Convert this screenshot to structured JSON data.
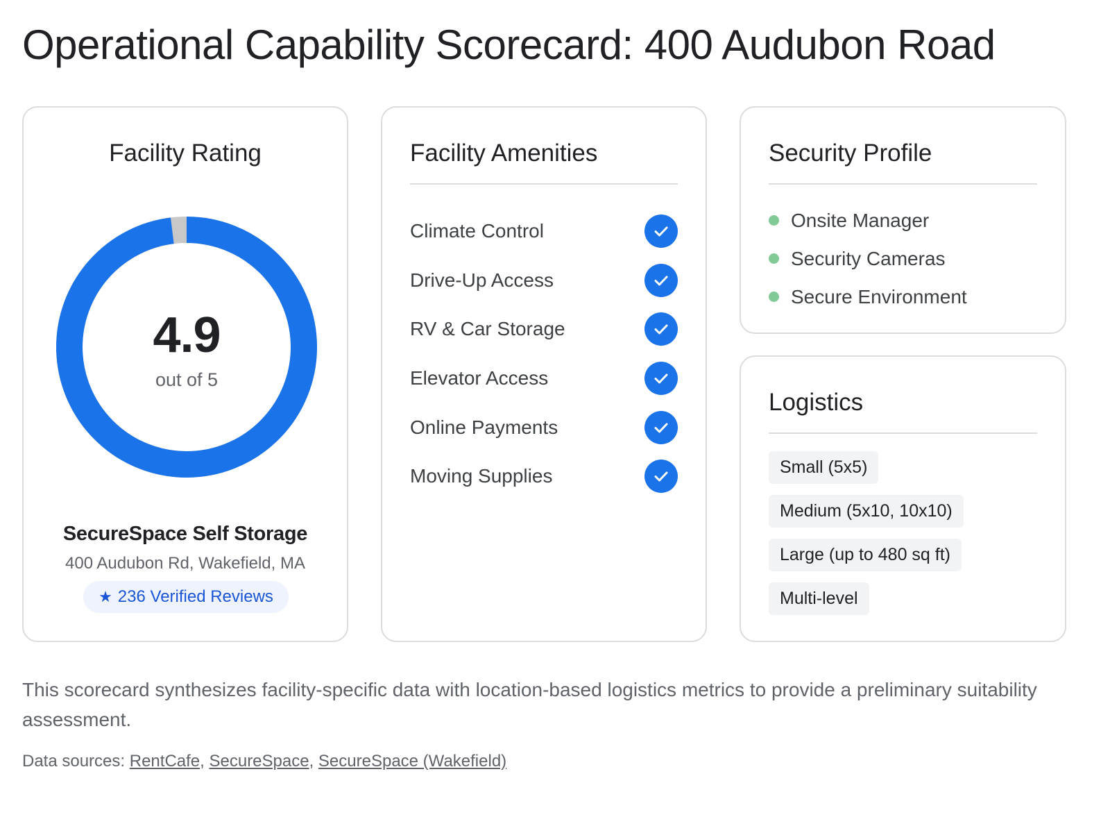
{
  "page": {
    "title": "Operational Capability Scorecard: 400 Audubon Road"
  },
  "rating_card": {
    "title": "Facility Rating",
    "score": "4.9",
    "score_caption": "out of 5",
    "score_fraction": 0.98,
    "facility_name": "SecureSpace Self Storage",
    "address": "400 Audubon Rd, Wakefield, MA",
    "reviews_label": "236 Verified Reviews",
    "star_icon": "star-icon",
    "colors": {
      "ring_fill": "#1a73e8",
      "ring_remainder": "#c8c8c8"
    }
  },
  "amenities_card": {
    "title": "Facility Amenities",
    "check_icon": "check-circle-icon",
    "check_color": "#1a73e8",
    "items": [
      {
        "label": "Climate Control"
      },
      {
        "label": "Drive-Up Access"
      },
      {
        "label": "RV & Car Storage"
      },
      {
        "label": "Elevator Access"
      },
      {
        "label": "Online Payments"
      },
      {
        "label": "Moving Supplies"
      }
    ]
  },
  "security_card": {
    "title": "Security Profile",
    "dot_color": "#81c995",
    "items": [
      {
        "label": "Onsite Manager"
      },
      {
        "label": "Security Cameras"
      },
      {
        "label": "Secure Environment"
      }
    ]
  },
  "logistics_card": {
    "title": "Logistics",
    "units": [
      {
        "label": "Small (5x5)"
      },
      {
        "label": "Medium (5x10, 10x10)"
      },
      {
        "label": "Large (up to 480 sq ft)"
      },
      {
        "label": "Multi-level"
      }
    ]
  },
  "footer": {
    "summary": "This scorecard synthesizes facility-specific data with location-based logistics metrics to provide a preliminary suitability assessment.",
    "sources_prefix": "Data sources:",
    "sources": [
      {
        "label": "RentCafe"
      },
      {
        "label": "SecureSpace"
      },
      {
        "label": "SecureSpace (Wakefield)"
      }
    ]
  }
}
